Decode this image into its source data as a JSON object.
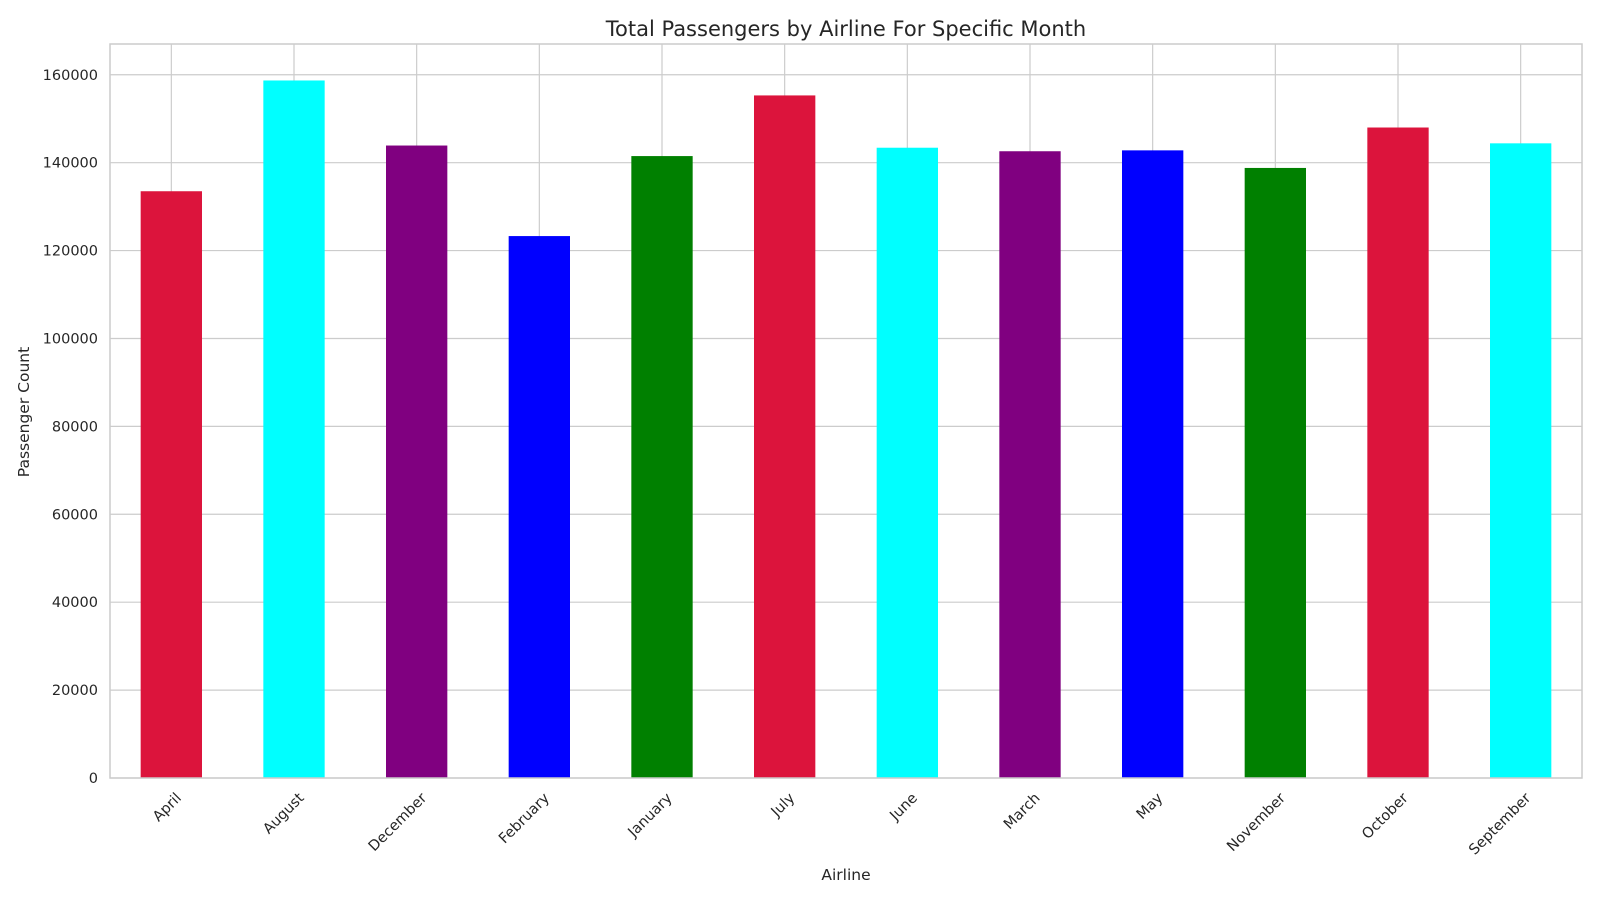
{
  "chart_data": {
    "type": "bar",
    "title": "Total Passengers by Airline For Specific Month",
    "xlabel": "Airline",
    "ylabel": "Passenger Count",
    "categories": [
      "April",
      "August",
      "December",
      "February",
      "January",
      "July",
      "June",
      "March",
      "May",
      "November",
      "October",
      "September"
    ],
    "values": [
      133500,
      158700,
      143900,
      123300,
      141500,
      155300,
      143400,
      142600,
      142800,
      138800,
      148000,
      144400
    ],
    "bar_colors": [
      "#dc143c",
      "#00ffff",
      "#800080",
      "#0000ff",
      "#008000",
      "#dc143c",
      "#00ffff",
      "#800080",
      "#0000ff",
      "#008000",
      "#dc143c",
      "#00ffff"
    ],
    "ylim": [
      0,
      167000
    ],
    "yticks": [
      0,
      20000,
      40000,
      60000,
      80000,
      100000,
      120000,
      140000,
      160000
    ],
    "grid": true,
    "x_tick_rotation_deg": 45,
    "colors": {
      "grid": "#cccccc",
      "axes_edge": "#cccccc",
      "text": "#262626",
      "background": "#ffffff"
    }
  }
}
